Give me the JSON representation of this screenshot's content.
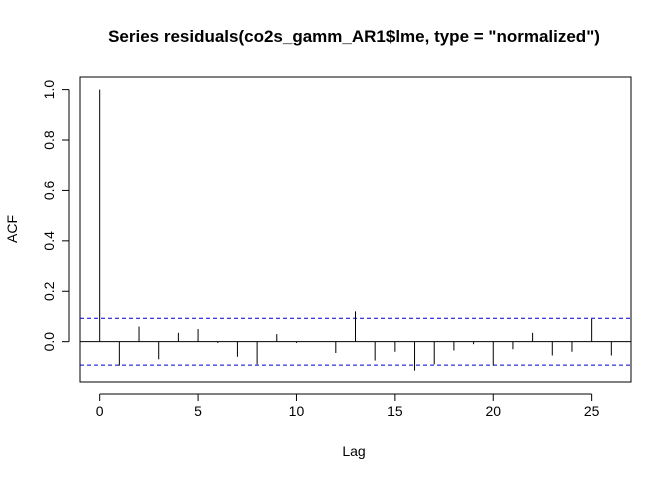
{
  "chart_data": {
    "type": "bar",
    "title": "Series  residuals(co2s_gamm_AR1$lme, type = \"normalized\")",
    "xlabel": "Lag",
    "ylabel": "ACF",
    "xlim": [
      -1,
      27
    ],
    "ylim": [
      -0.16,
      1.05
    ],
    "x_ticks": [
      0,
      5,
      10,
      15,
      20,
      25
    ],
    "y_ticks": [
      0.0,
      0.2,
      0.4,
      0.6,
      0.8,
      1.0
    ],
    "x_tick_labels": [
      "0",
      "5",
      "10",
      "15",
      "20",
      "25"
    ],
    "y_tick_labels": [
      "0.0",
      "0.2",
      "0.4",
      "0.6",
      "0.8",
      "1.0"
    ],
    "confidence_band": 0.093,
    "confidence_color": "#0000cc",
    "lags": [
      0,
      1,
      2,
      3,
      4,
      5,
      6,
      7,
      8,
      9,
      10,
      11,
      12,
      13,
      14,
      15,
      16,
      17,
      18,
      19,
      20,
      21,
      22,
      23,
      24,
      25,
      26
    ],
    "acf": [
      1.0,
      -0.095,
      0.06,
      -0.07,
      0.035,
      0.05,
      -0.005,
      -0.06,
      -0.09,
      0.03,
      -0.005,
      0.0,
      -0.045,
      0.12,
      -0.075,
      -0.04,
      -0.115,
      -0.09,
      -0.035,
      -0.01,
      -0.095,
      -0.03,
      0.035,
      -0.055,
      -0.04,
      0.09,
      -0.055
    ]
  }
}
